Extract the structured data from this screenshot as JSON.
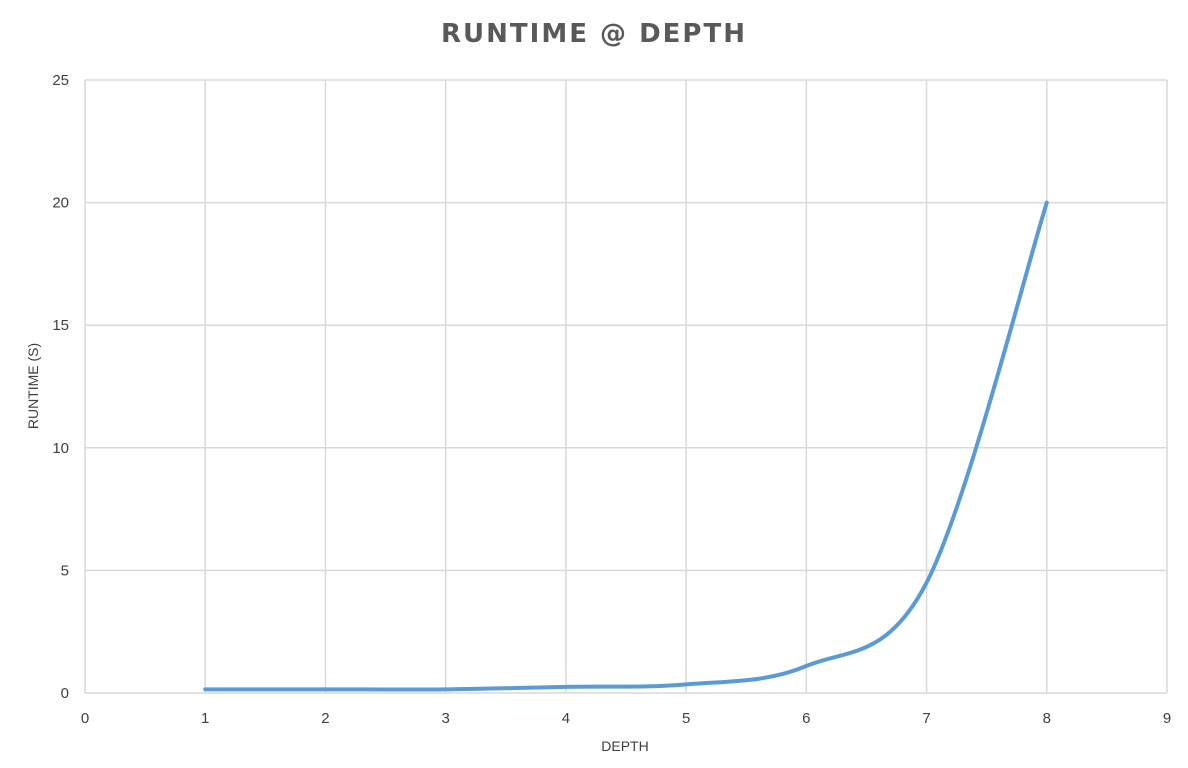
{
  "chart_data": {
    "type": "line",
    "title": "RUNTIME @ DEPTH",
    "xlabel": "DEPTH",
    "ylabel": "RUNTIME (S)",
    "xlim": [
      0,
      9
    ],
    "ylim": [
      0,
      25
    ],
    "xticks": [
      0,
      1,
      2,
      3,
      4,
      5,
      6,
      7,
      8,
      9
    ],
    "yticks": [
      0,
      5,
      10,
      15,
      20,
      25
    ],
    "grid": true,
    "smooth": true,
    "series": [
      {
        "x": [
          1,
          2,
          3,
          4,
          5,
          6,
          7,
          8
        ],
        "y": [
          0.15,
          0.15,
          0.15,
          0.25,
          0.35,
          1.1,
          4.5,
          20.0
        ],
        "color": "#5b9bd5"
      }
    ]
  }
}
